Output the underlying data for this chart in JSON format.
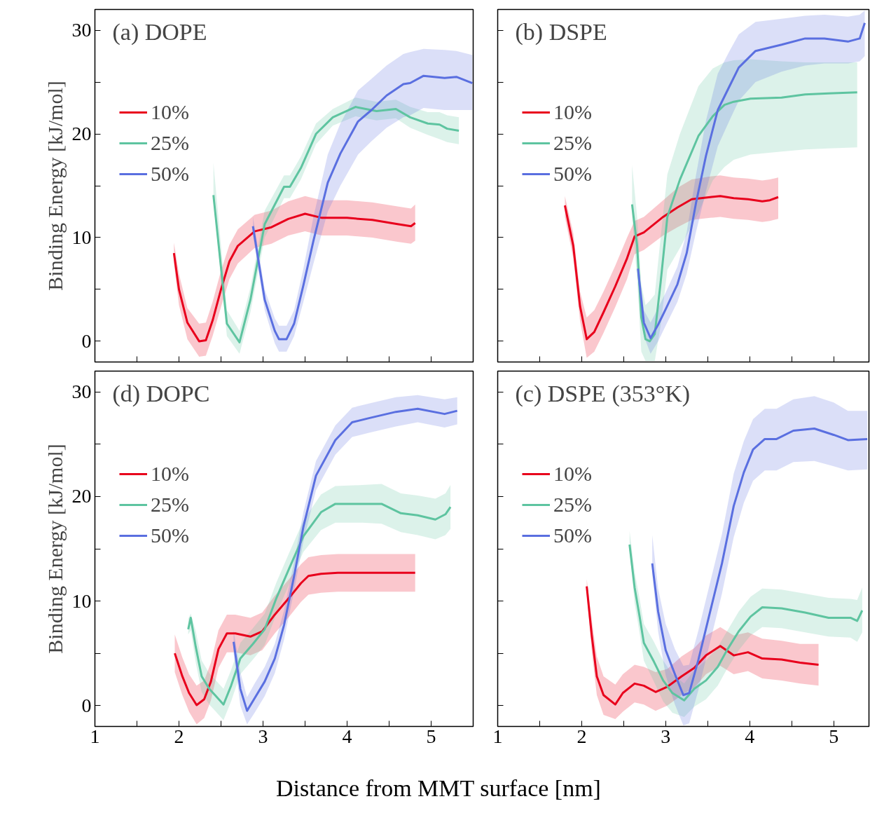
{
  "chart_data": [
    {
      "type": "line",
      "title": "(a) DOPE",
      "ylabel": "Binding Energy [kJ/mol]",
      "xlim": [
        1,
        5.5
      ],
      "ylim": [
        -2,
        32
      ],
      "xticks": [
        1,
        {
          "value": 1.5,
          "label": null
        },
        2,
        {
          "value": 2.5,
          "label": null
        },
        3,
        {
          "value": 3.5,
          "label": null
        },
        4,
        {
          "value": 4.5,
          "label": null
        },
        5
      ],
      "yticks": [
        0,
        {
          "value": 5,
          "label": null
        },
        10,
        {
          "value": 15,
          "label": null
        },
        20,
        {
          "value": 25,
          "label": null
        },
        30
      ],
      "tick_labels": "y",
      "legend": "top left",
      "series": [
        {
          "name": "10%",
          "color": "#e8001c",
          "x": [
            1.94,
            2.0,
            2.1,
            2.24,
            2.32,
            2.4,
            2.5,
            2.6,
            2.7,
            2.9,
            3.1,
            3.3,
            3.5,
            3.7,
            4.0,
            4.3,
            4.6,
            4.76,
            4.81
          ],
          "values": [
            8.5,
            5.0,
            1.8,
            0.0,
            0.1,
            2.0,
            5.0,
            7.7,
            9.2,
            10.6,
            11.0,
            11.8,
            12.3,
            11.9,
            11.9,
            11.7,
            11.3,
            11.1,
            11.4
          ],
          "lower": [
            7.5,
            3.5,
            0.2,
            -1.5,
            -1.4,
            0.5,
            3.3,
            6.0,
            7.5,
            9.0,
            9.4,
            10.2,
            10.6,
            10.2,
            10.2,
            10.0,
            9.6,
            9.4,
            9.7
          ],
          "upper": [
            9.5,
            6.5,
            3.2,
            1.7,
            1.8,
            3.8,
            6.8,
            9.3,
            10.8,
            12.2,
            12.6,
            13.5,
            14.0,
            13.6,
            13.6,
            13.4,
            13.0,
            12.8,
            13.2
          ]
        },
        {
          "name": "25%",
          "color": "#5ec4a0",
          "x": [
            2.41,
            2.57,
            2.72,
            2.85,
            3.02,
            3.25,
            3.32,
            3.45,
            3.63,
            3.83,
            4.1,
            4.35,
            4.58,
            4.75,
            4.96,
            5.1,
            5.19,
            5.33
          ],
          "values": [
            14.1,
            1.7,
            -0.1,
            4.0,
            11.3,
            14.9,
            14.9,
            16.7,
            20.0,
            21.6,
            22.6,
            22.2,
            22.4,
            21.6,
            21.0,
            20.9,
            20.5,
            20.3
          ],
          "lower": [
            13.5,
            0.5,
            -1.2,
            2.8,
            10.0,
            13.8,
            13.8,
            15.6,
            19.0,
            20.8,
            21.7,
            21.3,
            21.5,
            20.6,
            19.9,
            19.5,
            19.2,
            19.0
          ],
          "upper": [
            17.2,
            3.0,
            1.0,
            5.2,
            12.6,
            16.0,
            16.0,
            17.8,
            21.0,
            22.4,
            23.5,
            23.1,
            23.3,
            22.6,
            22.1,
            22.1,
            21.8,
            21.6
          ]
        },
        {
          "name": "50%",
          "color": "#5a6fe0",
          "x": [
            2.88,
            3.02,
            3.14,
            3.19,
            3.28,
            3.37,
            3.48,
            3.6,
            3.77,
            3.92,
            4.13,
            4.29,
            4.47,
            4.67,
            4.75,
            4.91,
            5.16,
            5.3,
            5.49
          ],
          "values": [
            11.1,
            4.0,
            1.0,
            0.2,
            0.2,
            1.7,
            5.4,
            9.7,
            15.3,
            18.1,
            21.2,
            22.3,
            23.7,
            24.8,
            24.9,
            25.6,
            25.4,
            25.5,
            24.9
          ],
          "lower": [
            10.2,
            3.0,
            -0.2,
            -1.0,
            -1.0,
            0.5,
            3.8,
            7.5,
            12.5,
            15.0,
            18.0,
            19.3,
            20.6,
            21.6,
            21.8,
            22.5,
            22.3,
            22.3,
            22.3
          ],
          "upper": [
            12.0,
            5.0,
            2.2,
            1.5,
            1.5,
            3.0,
            7.0,
            12.0,
            18.0,
            21.0,
            24.2,
            25.3,
            26.6,
            27.7,
            27.9,
            28.2,
            28.1,
            28.0,
            27.6
          ]
        }
      ]
    },
    {
      "type": "line",
      "title": "(b) DSPE",
      "xlim": [
        1,
        5.42
      ],
      "ylim": [
        -2,
        32
      ],
      "xticks": [
        1,
        {
          "value": 1.5,
          "label": null
        },
        2,
        {
          "value": 2.5,
          "label": null
        },
        3,
        {
          "value": 3.5,
          "label": null
        },
        4,
        {
          "value": 4.5,
          "label": null
        },
        5
      ],
      "yticks": [
        0,
        {
          "value": 5,
          "label": null
        },
        10,
        {
          "value": 15,
          "label": null
        },
        20,
        {
          "value": 25,
          "label": null
        },
        30
      ],
      "tick_labels": false,
      "legend": "top left",
      "series": [
        {
          "name": "10%",
          "color": "#e8001c",
          "x": [
            1.8,
            1.9,
            1.98,
            2.06,
            2.15,
            2.26,
            2.4,
            2.54,
            2.63,
            2.74,
            2.97,
            3.14,
            3.31,
            3.53,
            3.65,
            3.81,
            3.98,
            4.15,
            4.24,
            4.34
          ],
          "values": [
            13.1,
            9.2,
            3.4,
            0.2,
            0.9,
            2.8,
            5.3,
            8.0,
            10.1,
            10.5,
            12.0,
            12.9,
            13.7,
            13.9,
            14.0,
            13.8,
            13.7,
            13.5,
            13.6,
            13.9
          ],
          "lower": [
            12.0,
            8.0,
            2.0,
            -1.6,
            -1.0,
            0.8,
            3.3,
            6.0,
            8.4,
            8.8,
            10.2,
            11.0,
            11.7,
            11.9,
            12.0,
            11.8,
            11.7,
            11.5,
            11.6,
            11.8
          ],
          "upper": [
            14.0,
            10.4,
            4.8,
            2.3,
            3.0,
            4.8,
            7.3,
            10.0,
            11.6,
            12.0,
            13.6,
            14.8,
            15.6,
            15.9,
            16.0,
            15.8,
            15.7,
            15.5,
            15.6,
            15.8
          ]
        },
        {
          "name": "25%",
          "color": "#5ec4a0",
          "x": [
            2.6,
            2.66,
            2.71,
            2.76,
            2.81,
            2.87,
            2.94,
            3.02,
            3.17,
            3.39,
            3.56,
            3.7,
            3.81,
            4.01,
            4.38,
            4.66,
            4.94,
            5.28
          ],
          "values": [
            13.2,
            9.2,
            2.3,
            0.2,
            0.0,
            0.7,
            5.7,
            12.0,
            15.6,
            19.8,
            21.7,
            22.8,
            23.1,
            23.4,
            23.5,
            23.8,
            23.9,
            24.0
          ],
          "lower": [
            12.0,
            6.0,
            -1.0,
            -1.9,
            -1.9,
            -1.9,
            1.5,
            6.9,
            9.0,
            12.4,
            15.5,
            16.8,
            17.5,
            18.0,
            18.3,
            18.5,
            18.6,
            18.7
          ],
          "upper": [
            17.0,
            12.0,
            5.5,
            3.5,
            3.9,
            4.5,
            10.0,
            16.1,
            20.0,
            24.6,
            26.3,
            26.9,
            27.1,
            27.2,
            27.0,
            26.9,
            26.9,
            26.9
          ]
        },
        {
          "name": "50%",
          "color": "#5a6fe0",
          "x": [
            2.67,
            2.74,
            2.82,
            2.91,
            3.0,
            3.14,
            3.25,
            3.36,
            3.48,
            3.62,
            3.76,
            3.87,
            4.07,
            4.38,
            4.66,
            4.89,
            5.17,
            5.31,
            5.37
          ],
          "values": [
            7.0,
            1.8,
            0.3,
            1.6,
            3.1,
            5.5,
            8.5,
            13.3,
            17.9,
            22.3,
            24.6,
            26.4,
            28.0,
            28.6,
            29.2,
            29.2,
            28.9,
            29.2,
            30.7
          ],
          "lower": [
            6.0,
            0.5,
            -1.2,
            0.0,
            1.5,
            3.8,
            6.5,
            10.5,
            14.5,
            18.8,
            21.3,
            23.2,
            25.0,
            26.0,
            26.6,
            26.8,
            26.8,
            27.0,
            27.5
          ],
          "upper": [
            8.0,
            3.0,
            1.8,
            3.2,
            4.7,
            7.2,
            10.5,
            16.0,
            21.3,
            25.8,
            28.0,
            29.6,
            30.8,
            31.1,
            31.4,
            31.5,
            31.3,
            31.5,
            31.9
          ]
        }
      ]
    },
    {
      "type": "line",
      "title": "(d) DOPC",
      "xlabel": "Distance from MMT surface [nm]",
      "ylabel": "Binding Energy [kJ/mol]",
      "xlim": [
        1,
        5.5
      ],
      "ylim": [
        -2,
        32
      ],
      "xticks": [
        1,
        {
          "value": 1.5,
          "label": null
        },
        2,
        {
          "value": 2.5,
          "label": null
        },
        3,
        {
          "value": 3.5,
          "label": null
        },
        4,
        {
          "value": 4.5,
          "label": null
        },
        5
      ],
      "yticks": [
        0,
        {
          "value": 5,
          "label": null
        },
        10,
        {
          "value": 15,
          "label": null
        },
        20,
        {
          "value": 25,
          "label": null
        },
        30
      ],
      "legend": "top left",
      "series": [
        {
          "name": "10%",
          "color": "#e8001c",
          "x": [
            1.95,
            2.04,
            2.12,
            2.21,
            2.3,
            2.38,
            2.47,
            2.57,
            2.67,
            2.85,
            2.99,
            3.14,
            3.31,
            3.45,
            3.54,
            3.69,
            3.89,
            4.32,
            4.81
          ],
          "values": [
            5.0,
            2.8,
            1.2,
            0.05,
            0.6,
            2.3,
            5.4,
            6.9,
            6.9,
            6.6,
            7.1,
            8.7,
            10.3,
            11.7,
            12.4,
            12.6,
            12.7,
            12.7,
            12.7
          ],
          "lower": [
            3.2,
            1.0,
            -0.6,
            -1.8,
            -1.2,
            0.5,
            3.6,
            5.1,
            5.1,
            4.8,
            5.3,
            6.9,
            8.5,
            9.9,
            10.6,
            10.8,
            10.9,
            10.9,
            10.9
          ],
          "upper": [
            6.8,
            4.6,
            3.0,
            1.9,
            2.4,
            4.1,
            7.2,
            8.7,
            8.7,
            8.4,
            8.9,
            10.5,
            12.1,
            13.5,
            14.2,
            14.4,
            14.5,
            14.5,
            14.5
          ]
        },
        {
          "name": "25%",
          "color": "#5ec4a0",
          "x": [
            2.11,
            2.14,
            2.2,
            2.27,
            2.36,
            2.44,
            2.53,
            2.62,
            2.73,
            2.88,
            3.02,
            3.16,
            3.31,
            3.48,
            3.69,
            3.86,
            4.18,
            4.41,
            4.64,
            4.84,
            5.05,
            5.17,
            5.23
          ],
          "values": [
            7.3,
            8.4,
            5.6,
            2.8,
            1.6,
            0.9,
            0.1,
            1.9,
            4.5,
            5.9,
            7.3,
            10.3,
            13.1,
            16.2,
            18.5,
            19.3,
            19.3,
            19.3,
            18.4,
            18.2,
            17.8,
            18.3,
            19.0
          ],
          "lower": [
            6.8,
            7.2,
            4.1,
            1.3,
            0.1,
            -0.6,
            -1.4,
            0.4,
            3.0,
            4.4,
            5.8,
            8.8,
            11.6,
            14.7,
            16.8,
            17.5,
            17.5,
            17.4,
            16.6,
            16.3,
            15.9,
            16.3,
            16.9
          ],
          "upper": [
            8.3,
            8.8,
            7.1,
            4.3,
            3.1,
            2.4,
            1.6,
            3.4,
            6.0,
            7.4,
            8.8,
            11.8,
            14.6,
            17.7,
            20.2,
            21.0,
            21.1,
            21.2,
            20.3,
            20.1,
            19.8,
            20.3,
            21.1
          ]
        },
        {
          "name": "50%",
          "color": "#5a6fe0",
          "x": [
            2.65,
            2.73,
            2.81,
            2.9,
            3.02,
            3.14,
            3.25,
            3.37,
            3.48,
            3.63,
            3.86,
            4.06,
            4.26,
            4.58,
            4.84,
            5.16,
            5.31
          ],
          "values": [
            6.1,
            1.6,
            -0.5,
            0.7,
            2.3,
            4.5,
            7.7,
            12.4,
            17.1,
            22.0,
            25.4,
            27.1,
            27.5,
            28.1,
            28.4,
            27.9,
            28.2
          ],
          "lower": [
            5.0,
            0.0,
            -1.8,
            -0.7,
            0.9,
            3.1,
            6.3,
            11.0,
            15.7,
            20.6,
            24.0,
            25.7,
            26.1,
            26.7,
            27.1,
            26.6,
            26.9
          ],
          "upper": [
            7.2,
            3.2,
            0.8,
            2.1,
            3.7,
            5.9,
            9.1,
            13.8,
            18.5,
            23.4,
            26.8,
            28.5,
            28.9,
            29.5,
            29.7,
            29.3,
            29.5
          ]
        }
      ]
    },
    {
      "type": "line",
      "title": "(c) DSPE (353°K)",
      "xlim": [
        1,
        5.42
      ],
      "ylim": [
        -2,
        32
      ],
      "xticks": [
        1,
        {
          "value": 1.5,
          "label": null
        },
        2,
        {
          "value": 2.5,
          "label": null
        },
        3,
        {
          "value": 3.5,
          "label": null
        },
        4,
        {
          "value": 4.5,
          "label": null
        },
        5
      ],
      "yticks": [
        0,
        {
          "value": 5,
          "label": null
        },
        10,
        {
          "value": 15,
          "label": null
        },
        20,
        {
          "value": 25,
          "label": null
        },
        30
      ],
      "tick_labels": "x",
      "legend": "top left",
      "series": [
        {
          "name": "10%",
          "color": "#e8001c",
          "x": [
            2.06,
            2.12,
            2.18,
            2.26,
            2.4,
            2.49,
            2.63,
            2.74,
            2.88,
            3.02,
            3.19,
            3.34,
            3.48,
            3.65,
            3.81,
            3.98,
            4.15,
            4.38,
            4.6,
            4.82
          ],
          "values": [
            11.4,
            6.7,
            2.8,
            1.0,
            0.1,
            1.2,
            2.1,
            1.9,
            1.3,
            1.8,
            2.8,
            3.6,
            4.8,
            5.7,
            4.8,
            5.1,
            4.5,
            4.4,
            4.1,
            3.9
          ],
          "lower": [
            10.7,
            5.2,
            1.0,
            -0.9,
            -1.3,
            -0.6,
            0.3,
            0.1,
            -0.5,
            0.0,
            1.0,
            1.7,
            3.0,
            3.8,
            3.0,
            3.3,
            2.6,
            2.4,
            2.1,
            1.9
          ],
          "upper": [
            12.1,
            8.2,
            4.7,
            2.8,
            2.0,
            3.0,
            3.9,
            3.7,
            3.2,
            3.5,
            4.7,
            5.5,
            6.7,
            7.5,
            6.7,
            7.0,
            6.4,
            6.2,
            5.9,
            5.9
          ]
        },
        {
          "name": "25%",
          "color": "#5ec4a0",
          "x": [
            2.57,
            2.63,
            2.69,
            2.74,
            2.86,
            2.97,
            3.08,
            3.22,
            3.34,
            3.48,
            3.62,
            3.73,
            3.87,
            4.01,
            4.15,
            4.38,
            4.66,
            4.94,
            5.2,
            5.28,
            5.34
          ],
          "values": [
            15.4,
            11.3,
            8.5,
            6.0,
            4.2,
            2.4,
            1.2,
            0.5,
            1.6,
            2.4,
            3.7,
            5.3,
            7.1,
            8.5,
            9.4,
            9.3,
            8.9,
            8.4,
            8.4,
            8.1,
            9.1
          ],
          "lower": [
            14.9,
            9.8,
            6.9,
            4.3,
            2.3,
            0.4,
            -0.7,
            -1.1,
            -0.1,
            0.6,
            1.9,
            3.5,
            5.3,
            6.7,
            7.5,
            7.4,
            7.0,
            6.6,
            6.5,
            6.1,
            7.0
          ],
          "upper": [
            16.7,
            12.8,
            10.2,
            7.8,
            6.1,
            4.3,
            3.0,
            2.1,
            3.4,
            4.3,
            5.6,
            7.1,
            9.0,
            10.4,
            11.2,
            11.1,
            10.7,
            10.3,
            10.2,
            10.1,
            11.3
          ]
        },
        {
          "name": "50%",
          "color": "#5a6fe0",
          "x": [
            2.84,
            2.91,
            3.0,
            3.11,
            3.21,
            3.28,
            3.39,
            3.53,
            3.67,
            3.81,
            3.93,
            4.04,
            4.18,
            4.32,
            4.52,
            4.77,
            5.0,
            5.17,
            5.4
          ],
          "values": [
            13.6,
            9.0,
            5.3,
            3.0,
            1.0,
            1.2,
            4.4,
            9.0,
            13.6,
            19.1,
            22.3,
            24.5,
            25.5,
            25.5,
            26.3,
            26.5,
            25.9,
            25.4,
            25.5
          ],
          "lower": [
            12.6,
            7.1,
            2.9,
            0.1,
            -1.9,
            -1.7,
            1.5,
            6.1,
            10.7,
            16.1,
            19.4,
            21.5,
            22.5,
            22.5,
            23.3,
            23.4,
            22.9,
            22.5,
            22.6
          ],
          "upper": [
            16.3,
            11.2,
            7.8,
            5.4,
            3.8,
            3.9,
            7.2,
            11.8,
            16.4,
            22.2,
            25.3,
            27.4,
            28.4,
            28.4,
            29.3,
            29.6,
            29.0,
            28.2,
            28.2
          ]
        }
      ]
    }
  ]
}
